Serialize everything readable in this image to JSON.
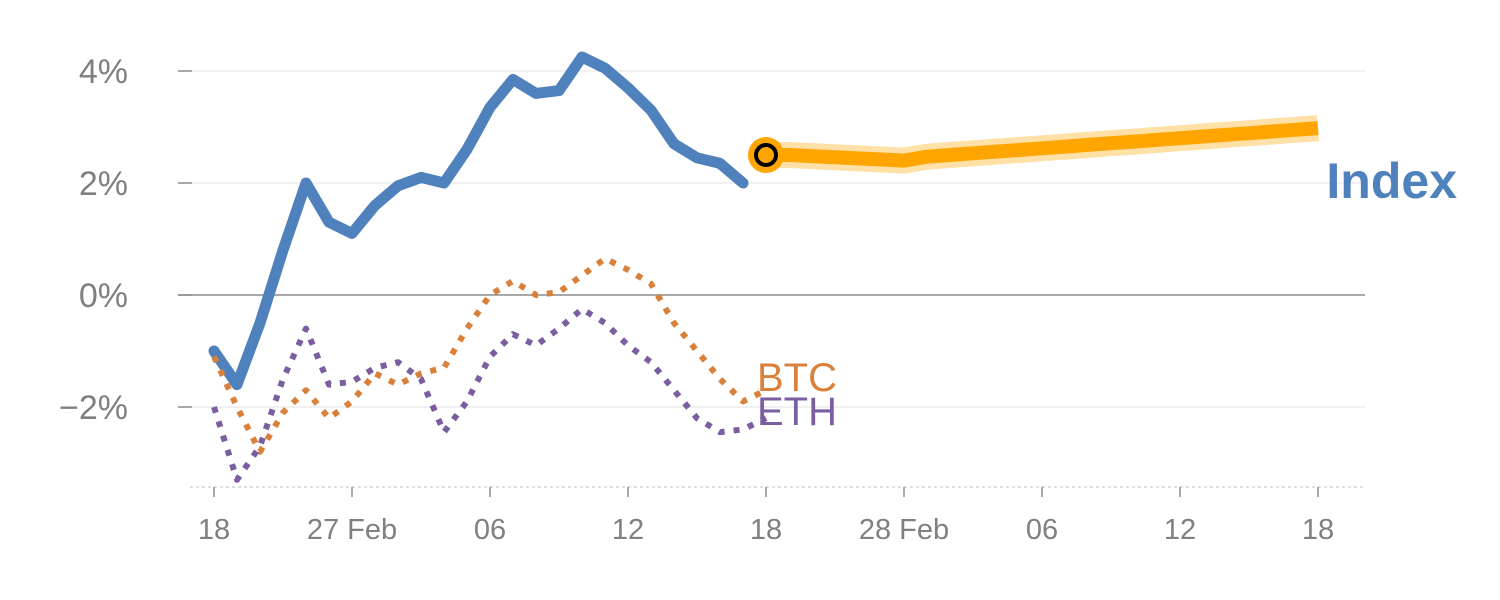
{
  "chart_data": {
    "type": "line",
    "title": "",
    "xlabel": "",
    "ylabel": "",
    "ylim": [
      -3.4,
      4.3
    ],
    "grid": true,
    "y_ticks": [
      {
        "value": 4,
        "label": "4%"
      },
      {
        "value": 2,
        "label": "2%"
      },
      {
        "value": 0,
        "label": "0%"
      },
      {
        "value": -2,
        "label": "−2%"
      }
    ],
    "x_ticks": [
      {
        "label": "18",
        "index": 0
      },
      {
        "label": "27 Feb",
        "index": 6
      },
      {
        "label": "06",
        "index": 12
      },
      {
        "label": "12",
        "index": 18
      },
      {
        "label": "18",
        "index": 24
      },
      {
        "label": "28 Feb",
        "index": 30
      },
      {
        "label": "06",
        "index": 36
      },
      {
        "label": "12",
        "index": 42
      },
      {
        "label": "18",
        "index": 48
      }
    ],
    "x_index_range": [
      -1,
      50
    ],
    "series": [
      {
        "name": "Index",
        "style": "solid",
        "color": "#4f81bd",
        "x": [
          0,
          1,
          2,
          3,
          4,
          5,
          6,
          7,
          8,
          9,
          10,
          11,
          12,
          13,
          14,
          15,
          16,
          17,
          18,
          19,
          20,
          21,
          22,
          23
        ],
        "values": [
          -1.0,
          -1.6,
          -0.5,
          0.8,
          2.0,
          1.3,
          1.1,
          1.6,
          1.95,
          2.1,
          2.0,
          2.6,
          3.35,
          3.85,
          3.6,
          3.65,
          4.25,
          4.05,
          3.7,
          3.3,
          2.7,
          2.45,
          2.35,
          2.0
        ]
      },
      {
        "name": "BTC",
        "style": "dotted",
        "color": "#d9803a",
        "x": [
          0,
          1,
          2,
          3,
          4,
          5,
          6,
          7,
          8,
          9,
          10,
          11,
          12,
          13,
          14,
          15,
          16,
          17,
          18,
          19,
          20,
          21,
          22,
          23,
          24
        ],
        "values": [
          -1.1,
          -2.0,
          -2.8,
          -2.1,
          -1.7,
          -2.2,
          -1.9,
          -1.4,
          -1.6,
          -1.4,
          -1.3,
          -0.6,
          0.0,
          0.25,
          0.0,
          0.05,
          0.35,
          0.65,
          0.45,
          0.2,
          -0.5,
          -1.0,
          -1.5,
          -1.9,
          -1.7
        ]
      },
      {
        "name": "ETH",
        "style": "dotted",
        "color": "#7a5ea0",
        "x": [
          0,
          1,
          2,
          3,
          4,
          5,
          6,
          7,
          8,
          9,
          10,
          11,
          12,
          13,
          14,
          15,
          16,
          17,
          18,
          19,
          20,
          21,
          22,
          23,
          24
        ],
        "values": [
          -2.0,
          -3.3,
          -2.7,
          -1.5,
          -0.6,
          -1.6,
          -1.55,
          -1.3,
          -1.2,
          -1.5,
          -2.45,
          -1.9,
          -1.1,
          -0.7,
          -0.9,
          -0.6,
          -0.25,
          -0.5,
          -0.9,
          -1.2,
          -1.7,
          -2.2,
          -2.45,
          -2.4,
          -2.2
        ]
      },
      {
        "name": "",
        "style": "forecast",
        "color": "#ffa500",
        "x": [
          24,
          25,
          26,
          27,
          28,
          29,
          30,
          31,
          32,
          33,
          34,
          35,
          36,
          37,
          38,
          39,
          40,
          41,
          42,
          43,
          44,
          45,
          46,
          47,
          48
        ],
        "values": [
          2.5,
          2.5,
          2.48,
          2.46,
          2.44,
          2.42,
          2.4,
          2.47,
          2.5,
          2.53,
          2.56,
          2.59,
          2.62,
          2.65,
          2.68,
          2.71,
          2.74,
          2.77,
          2.8,
          2.83,
          2.86,
          2.89,
          2.92,
          2.95,
          2.98
        ]
      }
    ],
    "marker": {
      "x": 24,
      "y": 2.5,
      "color": "#ffa500"
    },
    "labels": {
      "index": "Index",
      "btc": "BTC",
      "eth": "ETH"
    }
  }
}
